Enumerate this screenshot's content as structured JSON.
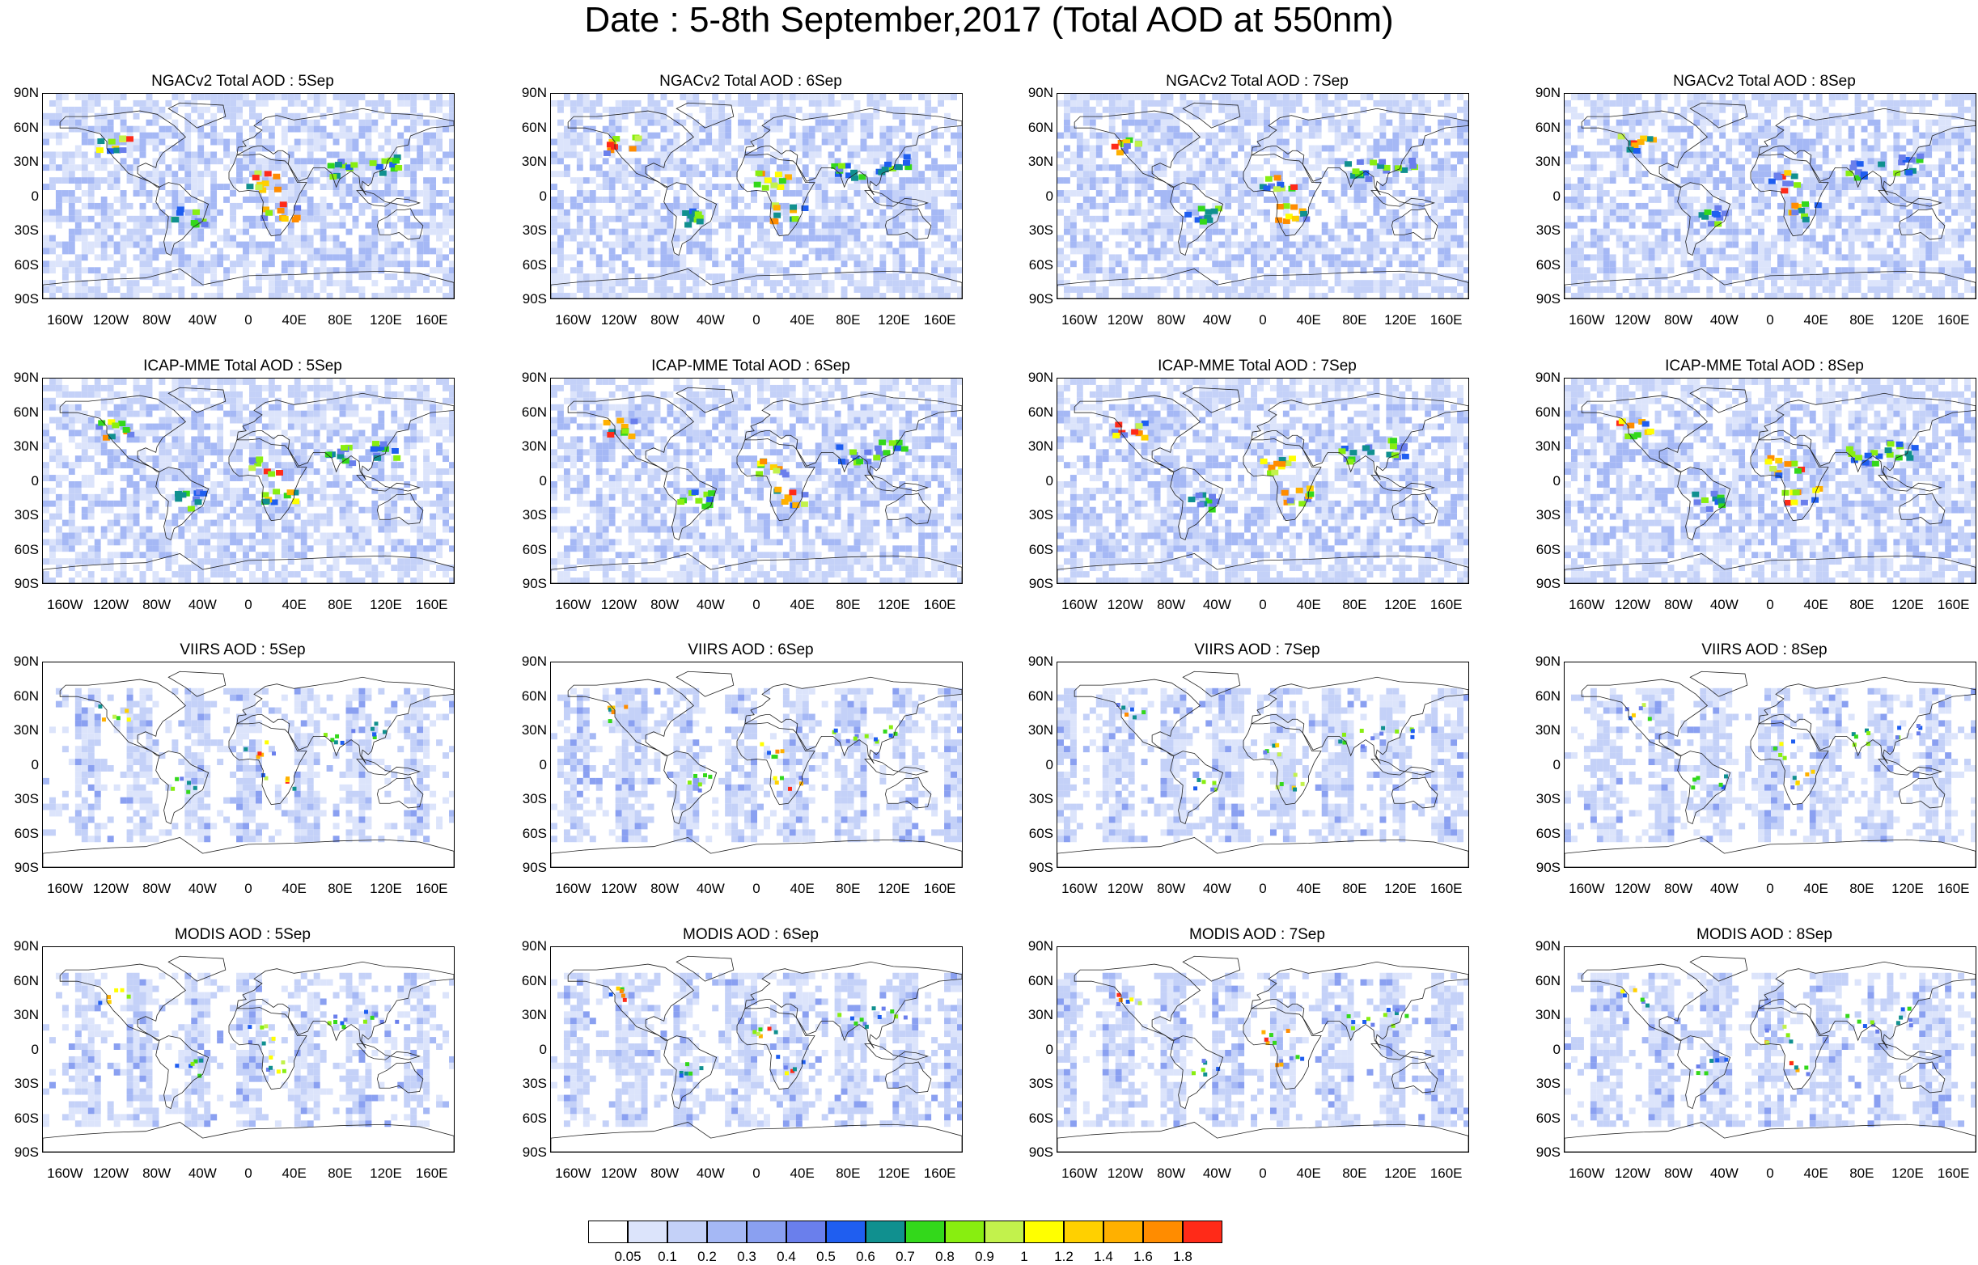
{
  "title": "Date : 5-8th September,2017 (Total AOD at 550nm)",
  "panels": [
    {
      "title": "NGACv2 Total AOD : 5Sep",
      "type": "model"
    },
    {
      "title": "NGACv2 Total AOD : 6Sep",
      "type": "model"
    },
    {
      "title": "NGACv2 Total AOD : 7Sep",
      "type": "model"
    },
    {
      "title": "NGACv2 Total AOD : 8Sep",
      "type": "model"
    },
    {
      "title": "ICAP-MME Total AOD : 5Sep",
      "type": "model"
    },
    {
      "title": "ICAP-MME Total AOD : 6Sep",
      "type": "model"
    },
    {
      "title": "ICAP-MME Total AOD : 7Sep",
      "type": "model"
    },
    {
      "title": "ICAP-MME Total AOD : 8Sep",
      "type": "model"
    },
    {
      "title": "VIIRS AOD : 5Sep",
      "type": "satellite"
    },
    {
      "title": "VIIRS AOD : 6Sep",
      "type": "satellite"
    },
    {
      "title": "VIIRS AOD : 7Sep",
      "type": "satellite"
    },
    {
      "title": "VIIRS AOD : 8Sep",
      "type": "satellite"
    },
    {
      "title": "MODIS AOD : 5Sep",
      "type": "satellite"
    },
    {
      "title": "MODIS AOD : 6Sep",
      "type": "satellite"
    },
    {
      "title": "MODIS AOD : 7Sep",
      "type": "satellite"
    },
    {
      "title": "MODIS AOD : 8Sep",
      "type": "satellite"
    }
  ],
  "lat_labels": [
    "90N",
    "60N",
    "30N",
    "0",
    "30S",
    "60S",
    "90S"
  ],
  "lon_labels": [
    "160W",
    "120W",
    "80W",
    "40W",
    "0",
    "40E",
    "80E",
    "120E",
    "160E"
  ],
  "lon_values": [
    -160,
    -120,
    -80,
    -40,
    0,
    40,
    80,
    120,
    160
  ],
  "colorbar": {
    "colors": [
      "#ffffff",
      "#dce4fb",
      "#c4d1f8",
      "#a5b8f5",
      "#8aa0f1",
      "#6a7fec",
      "#1f5ef0",
      "#10908f",
      "#33d81b",
      "#88ee10",
      "#c2f24c",
      "#ffff00",
      "#ffd000",
      "#ffb000",
      "#ff8c00",
      "#ff2a18"
    ],
    "labels": [
      "0.05",
      "0.1",
      "0.2",
      "0.3",
      "0.4",
      "0.5",
      "0.6",
      "0.7",
      "0.8",
      "0.9",
      "1",
      "1.2",
      "1.4",
      "1.6",
      "1.8"
    ]
  }
}
